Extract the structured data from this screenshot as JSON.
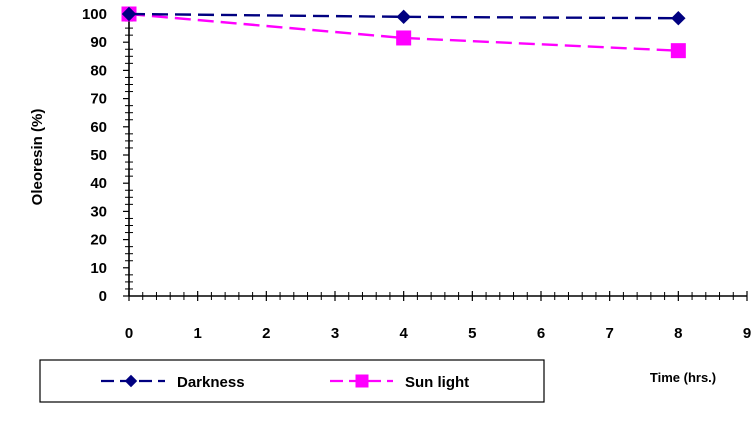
{
  "chart_data": {
    "type": "line",
    "title": "",
    "xlabel": "Time (hrs.)",
    "ylabel": "Oleoresin (%)",
    "xlim": [
      0,
      9
    ],
    "ylim": [
      0,
      100
    ],
    "x_ticks": [
      "0",
      "1",
      "2",
      "3",
      "4",
      "5",
      "6",
      "7",
      "8",
      "9"
    ],
    "y_ticks": [
      "0",
      "10",
      "20",
      "30",
      "40",
      "50",
      "60",
      "70",
      "80",
      "90",
      "100"
    ],
    "grid": false,
    "legend_position": "bottom",
    "series": [
      {
        "name": "Darkness",
        "color": "#000080",
        "marker": "diamond",
        "line_style": "dashed",
        "x": [
          0,
          4,
          8
        ],
        "y": [
          100,
          99,
          98.5
        ]
      },
      {
        "name": "Sun light",
        "color": "#ff00ff",
        "marker": "square",
        "line_style": "dashed",
        "x": [
          0,
          4,
          8
        ],
        "y": [
          100,
          91.5,
          87
        ]
      }
    ]
  }
}
